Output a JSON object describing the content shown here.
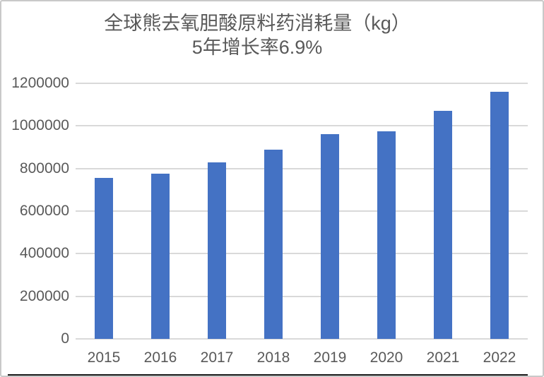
{
  "chart_data": {
    "type": "bar",
    "title": "全球熊去氧胆酸原料药消耗量（kg）",
    "subtitle": "5年增长率6.9%",
    "categories": [
      "2015",
      "2016",
      "2017",
      "2018",
      "2019",
      "2020",
      "2021",
      "2022"
    ],
    "values": [
      755000,
      775000,
      830000,
      890000,
      960000,
      975000,
      1070000,
      1160000
    ],
    "xlabel": "",
    "ylabel": "",
    "ylim": [
      0,
      1200000
    ],
    "ytick_step": 200000,
    "ytick_labels": [
      "0",
      "200000",
      "400000",
      "600000",
      "800000",
      "1000000",
      "1200000"
    ],
    "grid": true,
    "legend": "none",
    "colors": {
      "bar": "#4472C4",
      "gridline": "#D9D9D9",
      "axis_text": "#595959",
      "title_text": "#595959",
      "frame_border": "#C9C9C9",
      "bottom_edge": "#1A1A1A",
      "background": "#FFFFFF"
    }
  }
}
